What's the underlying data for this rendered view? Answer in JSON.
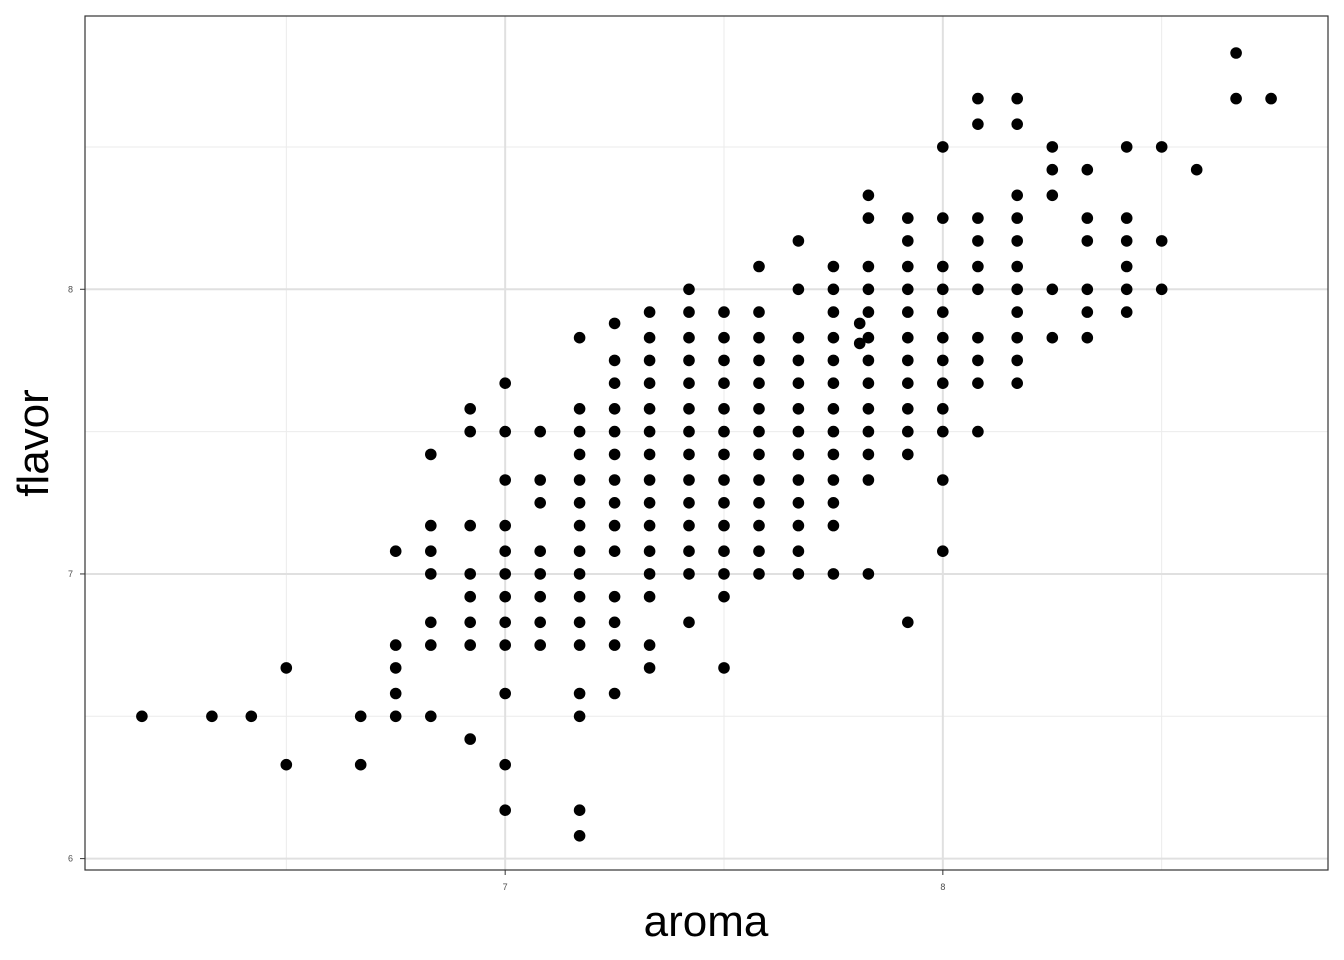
{
  "chart_data": {
    "type": "scatter",
    "title": "",
    "xlabel": "aroma",
    "ylabel": "flavor",
    "xlim": [
      6.04,
      8.88
    ],
    "ylim": [
      5.96,
      8.96
    ],
    "x_ticks": [
      7,
      8
    ],
    "y_ticks": [
      6,
      7,
      8
    ],
    "x_minor_ticks": [
      6.5,
      7.5,
      8.5
    ],
    "y_minor_ticks": [
      6.5,
      7.5,
      8.5
    ],
    "grid": true,
    "legend": "none",
    "point_color": "#000000",
    "points": [
      [
        6.17,
        6.5
      ],
      [
        6.33,
        6.5
      ],
      [
        6.42,
        6.5
      ],
      [
        6.5,
        6.67
      ],
      [
        6.5,
        6.33
      ],
      [
        6.67,
        6.5
      ],
      [
        6.67,
        6.33
      ],
      [
        6.75,
        7.08
      ],
      [
        6.75,
        6.75
      ],
      [
        6.75,
        6.67
      ],
      [
        6.75,
        6.58
      ],
      [
        6.75,
        6.5
      ],
      [
        6.83,
        7.42
      ],
      [
        6.83,
        7.17
      ],
      [
        6.83,
        7.08
      ],
      [
        6.83,
        7.0
      ],
      [
        6.83,
        6.83
      ],
      [
        6.83,
        6.75
      ],
      [
        6.83,
        6.5
      ],
      [
        6.92,
        7.58
      ],
      [
        6.92,
        7.5
      ],
      [
        6.92,
        7.17
      ],
      [
        6.92,
        7.0
      ],
      [
        6.92,
        6.92
      ],
      [
        6.92,
        6.83
      ],
      [
        6.92,
        6.75
      ],
      [
        6.92,
        6.42
      ],
      [
        7.0,
        7.67
      ],
      [
        7.0,
        7.5
      ],
      [
        7.0,
        7.33
      ],
      [
        7.0,
        7.17
      ],
      [
        7.0,
        7.08
      ],
      [
        7.0,
        7.0
      ],
      [
        7.0,
        6.92
      ],
      [
        7.0,
        6.83
      ],
      [
        7.0,
        6.75
      ],
      [
        7.0,
        6.58
      ],
      [
        7.0,
        6.33
      ],
      [
        7.0,
        6.17
      ],
      [
        7.08,
        7.5
      ],
      [
        7.08,
        7.33
      ],
      [
        7.08,
        7.25
      ],
      [
        7.08,
        7.08
      ],
      [
        7.08,
        7.0
      ],
      [
        7.08,
        6.92
      ],
      [
        7.08,
        6.83
      ],
      [
        7.08,
        6.75
      ],
      [
        7.17,
        7.83
      ],
      [
        7.17,
        7.58
      ],
      [
        7.17,
        7.5
      ],
      [
        7.17,
        7.42
      ],
      [
        7.17,
        7.33
      ],
      [
        7.17,
        7.25
      ],
      [
        7.17,
        7.17
      ],
      [
        7.17,
        7.08
      ],
      [
        7.17,
        7.0
      ],
      [
        7.17,
        6.92
      ],
      [
        7.17,
        6.83
      ],
      [
        7.17,
        6.75
      ],
      [
        7.17,
        6.58
      ],
      [
        7.17,
        6.5
      ],
      [
        7.17,
        6.17
      ],
      [
        7.17,
        6.08
      ],
      [
        7.25,
        7.88
      ],
      [
        7.25,
        7.75
      ],
      [
        7.25,
        7.67
      ],
      [
        7.25,
        7.58
      ],
      [
        7.25,
        7.5
      ],
      [
        7.25,
        7.42
      ],
      [
        7.25,
        7.33
      ],
      [
        7.25,
        7.25
      ],
      [
        7.25,
        7.17
      ],
      [
        7.25,
        7.08
      ],
      [
        7.25,
        6.92
      ],
      [
        7.25,
        6.83
      ],
      [
        7.25,
        6.75
      ],
      [
        7.25,
        6.58
      ],
      [
        7.33,
        7.92
      ],
      [
        7.33,
        7.83
      ],
      [
        7.33,
        7.75
      ],
      [
        7.33,
        7.67
      ],
      [
        7.33,
        7.58
      ],
      [
        7.33,
        7.5
      ],
      [
        7.33,
        7.42
      ],
      [
        7.33,
        7.33
      ],
      [
        7.33,
        7.25
      ],
      [
        7.33,
        7.17
      ],
      [
        7.33,
        7.08
      ],
      [
        7.33,
        7.0
      ],
      [
        7.33,
        6.92
      ],
      [
        7.33,
        6.75
      ],
      [
        7.33,
        6.67
      ],
      [
        7.42,
        8.0
      ],
      [
        7.42,
        7.92
      ],
      [
        7.42,
        7.83
      ],
      [
        7.42,
        7.75
      ],
      [
        7.42,
        7.67
      ],
      [
        7.42,
        7.58
      ],
      [
        7.42,
        7.5
      ],
      [
        7.42,
        7.42
      ],
      [
        7.42,
        7.33
      ],
      [
        7.42,
        7.25
      ],
      [
        7.42,
        7.17
      ],
      [
        7.42,
        7.08
      ],
      [
        7.42,
        7.0
      ],
      [
        7.42,
        6.83
      ],
      [
        7.5,
        7.92
      ],
      [
        7.5,
        7.83
      ],
      [
        7.5,
        7.75
      ],
      [
        7.5,
        7.67
      ],
      [
        7.5,
        7.58
      ],
      [
        7.5,
        7.5
      ],
      [
        7.5,
        7.42
      ],
      [
        7.5,
        7.33
      ],
      [
        7.5,
        7.25
      ],
      [
        7.5,
        7.17
      ],
      [
        7.5,
        7.08
      ],
      [
        7.5,
        7.0
      ],
      [
        7.5,
        6.92
      ],
      [
        7.5,
        6.67
      ],
      [
        7.58,
        8.08
      ],
      [
        7.58,
        7.92
      ],
      [
        7.58,
        7.83
      ],
      [
        7.58,
        7.75
      ],
      [
        7.58,
        7.67
      ],
      [
        7.58,
        7.58
      ],
      [
        7.58,
        7.5
      ],
      [
        7.58,
        7.42
      ],
      [
        7.58,
        7.33
      ],
      [
        7.58,
        7.25
      ],
      [
        7.58,
        7.17
      ],
      [
        7.58,
        7.08
      ],
      [
        7.58,
        7.0
      ],
      [
        7.67,
        8.17
      ],
      [
        7.67,
        8.0
      ],
      [
        7.67,
        7.83
      ],
      [
        7.67,
        7.75
      ],
      [
        7.67,
        7.67
      ],
      [
        7.67,
        7.58
      ],
      [
        7.67,
        7.5
      ],
      [
        7.67,
        7.42
      ],
      [
        7.67,
        7.33
      ],
      [
        7.67,
        7.25
      ],
      [
        7.67,
        7.17
      ],
      [
        7.67,
        7.08
      ],
      [
        7.67,
        7.0
      ],
      [
        7.75,
        8.08
      ],
      [
        7.75,
        8.0
      ],
      [
        7.75,
        7.92
      ],
      [
        7.75,
        7.83
      ],
      [
        7.75,
        7.75
      ],
      [
        7.75,
        7.67
      ],
      [
        7.75,
        7.58
      ],
      [
        7.75,
        7.5
      ],
      [
        7.75,
        7.42
      ],
      [
        7.75,
        7.33
      ],
      [
        7.75,
        7.25
      ],
      [
        7.75,
        7.17
      ],
      [
        7.75,
        7.0
      ],
      [
        7.81,
        7.88
      ],
      [
        7.81,
        7.81
      ],
      [
        7.83,
        8.33
      ],
      [
        7.83,
        8.25
      ],
      [
        7.83,
        8.08
      ],
      [
        7.83,
        8.0
      ],
      [
        7.83,
        7.92
      ],
      [
        7.83,
        7.83
      ],
      [
        7.83,
        7.75
      ],
      [
        7.83,
        7.67
      ],
      [
        7.83,
        7.58
      ],
      [
        7.83,
        7.5
      ],
      [
        7.83,
        7.42
      ],
      [
        7.83,
        7.33
      ],
      [
        7.83,
        7.0
      ],
      [
        7.92,
        8.25
      ],
      [
        7.92,
        8.17
      ],
      [
        7.92,
        8.08
      ],
      [
        7.92,
        8.0
      ],
      [
        7.92,
        7.92
      ],
      [
        7.92,
        7.83
      ],
      [
        7.92,
        7.75
      ],
      [
        7.92,
        7.67
      ],
      [
        7.92,
        7.58
      ],
      [
        7.92,
        7.5
      ],
      [
        7.92,
        7.42
      ],
      [
        7.92,
        6.83
      ],
      [
        8.0,
        8.5
      ],
      [
        8.0,
        8.25
      ],
      [
        8.0,
        8.08
      ],
      [
        8.0,
        8.0
      ],
      [
        8.0,
        7.92
      ],
      [
        8.0,
        7.83
      ],
      [
        8.0,
        7.75
      ],
      [
        8.0,
        7.67
      ],
      [
        8.0,
        7.58
      ],
      [
        8.0,
        7.5
      ],
      [
        8.0,
        7.33
      ],
      [
        8.0,
        7.08
      ],
      [
        8.08,
        8.67
      ],
      [
        8.08,
        8.58
      ],
      [
        8.08,
        8.25
      ],
      [
        8.08,
        8.17
      ],
      [
        8.08,
        8.08
      ],
      [
        8.08,
        8.0
      ],
      [
        8.08,
        7.83
      ],
      [
        8.08,
        7.75
      ],
      [
        8.08,
        7.67
      ],
      [
        8.08,
        7.5
      ],
      [
        8.17,
        8.67
      ],
      [
        8.17,
        8.58
      ],
      [
        8.17,
        8.33
      ],
      [
        8.17,
        8.25
      ],
      [
        8.17,
        8.17
      ],
      [
        8.17,
        8.08
      ],
      [
        8.17,
        8.0
      ],
      [
        8.17,
        7.92
      ],
      [
        8.17,
        7.83
      ],
      [
        8.17,
        7.75
      ],
      [
        8.17,
        7.67
      ],
      [
        8.25,
        8.5
      ],
      [
        8.25,
        8.42
      ],
      [
        8.25,
        8.33
      ],
      [
        8.25,
        8.0
      ],
      [
        8.25,
        7.83
      ],
      [
        8.33,
        8.42
      ],
      [
        8.33,
        8.25
      ],
      [
        8.33,
        8.17
      ],
      [
        8.33,
        8.0
      ],
      [
        8.33,
        7.92
      ],
      [
        8.33,
        7.83
      ],
      [
        8.42,
        8.5
      ],
      [
        8.42,
        8.25
      ],
      [
        8.42,
        8.17
      ],
      [
        8.42,
        8.08
      ],
      [
        8.42,
        8.0
      ],
      [
        8.42,
        7.92
      ],
      [
        8.5,
        8.5
      ],
      [
        8.5,
        8.17
      ],
      [
        8.5,
        8.0
      ],
      [
        8.58,
        8.42
      ],
      [
        8.67,
        8.83
      ],
      [
        8.67,
        8.67
      ],
      [
        8.75,
        8.67
      ]
    ]
  }
}
